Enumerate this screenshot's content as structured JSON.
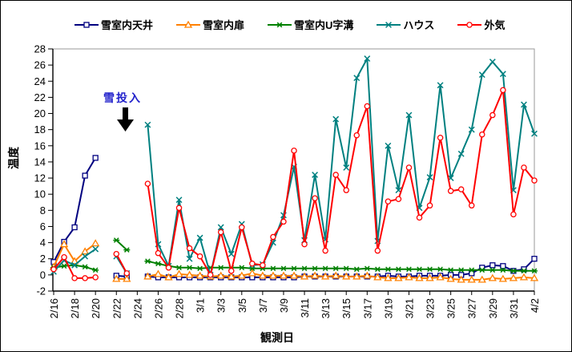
{
  "y_axis": {
    "title": "温度",
    "min": -2,
    "max": 28,
    "step": 2,
    "ticks": [
      28,
      26,
      24,
      22,
      20,
      18,
      16,
      14,
      12,
      10,
      8,
      6,
      4,
      2,
      0,
      -2
    ]
  },
  "x_axis": {
    "title": "観測日",
    "tick_labels": [
      "2/16",
      "2/18",
      "2/20",
      "2/22",
      "2/24",
      "2/26",
      "2/28",
      "3/1",
      "3/3",
      "3/5",
      "3/7",
      "3/9",
      "3/11",
      "3/13",
      "3/15",
      "3/17",
      "3/19",
      "3/21",
      "3/23",
      "3/25",
      "3/27",
      "3/29",
      "3/31",
      "4/2"
    ]
  },
  "annotation": {
    "text": "雪投入",
    "color": "#2222CC",
    "arrow": "down"
  },
  "chart_data": {
    "type": "line",
    "title": "",
    "xlabel": "観測日",
    "ylabel": "温度",
    "ylim": [
      -2,
      28
    ],
    "grid": false,
    "legend_position": "top",
    "x": [
      "2/16",
      "2/17",
      "2/18",
      "2/19",
      "2/20",
      "2/21",
      "2/22",
      "2/23",
      "2/24",
      "2/25",
      "2/26",
      "2/27",
      "2/28",
      "2/29",
      "3/1",
      "3/2",
      "3/3",
      "3/4",
      "3/5",
      "3/6",
      "3/7",
      "3/8",
      "3/9",
      "3/10",
      "3/11",
      "3/12",
      "3/13",
      "3/14",
      "3/15",
      "3/16",
      "3/17",
      "3/18",
      "3/19",
      "3/20",
      "3/21",
      "3/22",
      "3/23",
      "3/24",
      "3/25",
      "3/26",
      "3/27",
      "3/28",
      "3/29",
      "3/30",
      "3/31",
      "4/1",
      "4/2"
    ],
    "x_tick_step": 2,
    "series": [
      {
        "id": "ceiling",
        "name": "雪室内天井",
        "color": "#000080",
        "marker": "square",
        "values": [
          1.6,
          4.1,
          5.9,
          12.3,
          14.5,
          null,
          -0.1,
          -0.2,
          null,
          -0.2,
          -0.3,
          -0.3,
          -0.3,
          -0.3,
          -0.3,
          -0.3,
          -0.3,
          -0.3,
          -0.3,
          -0.3,
          -0.3,
          -0.3,
          -0.3,
          -0.3,
          -0.2,
          -0.2,
          -0.2,
          -0.2,
          -0.2,
          -0.2,
          -0.2,
          -0.2,
          -0.1,
          -0.2,
          -0.2,
          -0.1,
          -0.1,
          -0.1,
          0.0,
          0.0,
          0.2,
          0.9,
          1.2,
          1.1,
          0.5,
          0.7,
          2.0
        ]
      },
      {
        "id": "door",
        "name": "雪室内扉",
        "color": "#FF8000",
        "marker": "triangle",
        "values": [
          1.0,
          3.8,
          1.7,
          2.9,
          3.9,
          null,
          -0.5,
          -0.5,
          null,
          -0.2,
          0.1,
          -0.3,
          0.1,
          0.0,
          -0.1,
          -0.2,
          -0.1,
          -0.2,
          -0.1,
          0.2,
          -0.1,
          -0.1,
          -0.1,
          -0.1,
          -0.2,
          -0.1,
          -0.2,
          -0.1,
          -0.2,
          -0.2,
          -0.1,
          -0.3,
          -0.4,
          -0.4,
          -0.3,
          -0.4,
          -0.4,
          -0.3,
          -0.5,
          -0.6,
          -0.6,
          -0.6,
          -0.4,
          -0.5,
          -0.4,
          -0.3,
          -0.4
        ]
      },
      {
        "id": "u-groove",
        "name": "雪室内U字溝",
        "color": "#008000",
        "marker": "asterisk",
        "values": [
          0.9,
          1.1,
          1.2,
          1.0,
          0.6,
          null,
          4.3,
          3.1,
          null,
          1.7,
          1.4,
          1.1,
          0.9,
          0.9,
          0.8,
          0.9,
          0.9,
          0.9,
          0.9,
          0.8,
          0.8,
          0.8,
          0.8,
          0.8,
          0.8,
          0.8,
          0.8,
          0.8,
          0.8,
          0.7,
          0.8,
          0.7,
          0.7,
          0.7,
          0.7,
          0.7,
          0.7,
          0.7,
          0.6,
          0.6,
          0.6,
          0.6,
          0.6,
          0.6,
          0.5,
          0.5,
          0.5
        ]
      },
      {
        "id": "house",
        "name": "ハウス",
        "color": "#008080",
        "marker": "x",
        "values": [
          0.4,
          1.8,
          1.2,
          2.3,
          3.2,
          null,
          2.3,
          0.2,
          null,
          18.6,
          3.8,
          1.1,
          9.3,
          2.0,
          4.6,
          0.0,
          5.9,
          2.6,
          6.3,
          1.2,
          1.3,
          4.0,
          7.4,
          13.4,
          4.3,
          12.4,
          4.4,
          19.3,
          13.3,
          24.4,
          26.8,
          4.2,
          16.0,
          10.5,
          19.8,
          8.3,
          12.1,
          23.5,
          12.0,
          15.0,
          18.0,
          24.8,
          26.4,
          24.9,
          10.5,
          21.1,
          17.5
        ]
      },
      {
        "id": "outside",
        "name": "外気",
        "color": "#FF0000",
        "marker": "circle",
        "values": [
          0.7,
          2.2,
          -0.4,
          -0.4,
          -0.3,
          null,
          2.6,
          0.2,
          null,
          11.3,
          2.7,
          0.9,
          8.3,
          3.3,
          2.3,
          0.0,
          5.3,
          0.5,
          5.9,
          1.4,
          1.2,
          4.7,
          6.6,
          15.4,
          3.8,
          9.5,
          3.0,
          12.4,
          10.5,
          17.3,
          20.9,
          3.0,
          9.1,
          9.4,
          13.3,
          7.1,
          8.6,
          17.0,
          10.4,
          10.6,
          8.6,
          17.4,
          19.8,
          22.9,
          7.5,
          13.3,
          11.7
        ]
      }
    ]
  }
}
